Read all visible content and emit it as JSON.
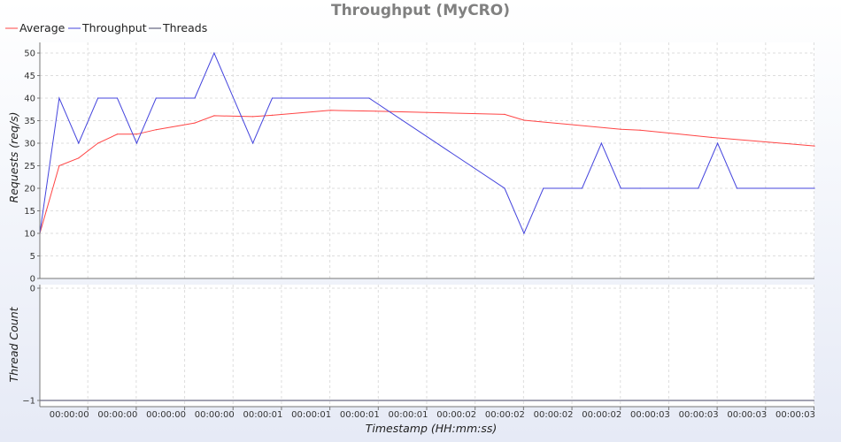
{
  "chart_data": [
    {
      "type": "line",
      "title": "Throughput (MyCRO)",
      "ylabel": "Requests (req/s)",
      "xlabel": "",
      "ylim": [
        0,
        50
      ],
      "yticks": [
        0,
        5,
        10,
        15,
        20,
        25,
        30,
        35,
        40,
        45,
        50
      ],
      "grid": true,
      "legend": "top-left",
      "legend_entries": [
        "Average",
        "Throughput",
        "Threads"
      ],
      "colors": {
        "Average": "#ff4444",
        "Throughput": "#4444dd",
        "Threads": "#444466"
      },
      "x": [
        0,
        0.05,
        0.1,
        0.15,
        0.2,
        0.25,
        0.3,
        0.35,
        0.4,
        0.45,
        0.5,
        0.55,
        0.6,
        0.65,
        0.7,
        0.75,
        0.8,
        0.85,
        0.9,
        0.95,
        1.0,
        1.05,
        1.1,
        1.15,
        1.2,
        1.25,
        1.3,
        1.35,
        1.4,
        1.45,
        1.5,
        1.55,
        1.6,
        1.65,
        1.7,
        1.75,
        1.8,
        1.85,
        1.9,
        1.95,
        2.0,
        2.05,
        2.1,
        2.15,
        2.2,
        2.25,
        2.3,
        2.35,
        2.4,
        2.45,
        2.5,
        2.55,
        2.6,
        2.65,
        2.7,
        2.75,
        2.8,
        2.85,
        2.9,
        2.95,
        3.0
      ],
      "series": [
        {
          "name": "Average",
          "x": [
            0,
            0.075,
            0.15,
            0.225,
            0.3,
            0.375,
            0.45,
            0.6,
            0.675,
            0.825,
            0.9,
            1.125,
            1.3,
            1.8,
            1.875,
            2.25,
            2.325,
            2.6,
            3.0
          ],
          "values": [
            10,
            25,
            26.7,
            30,
            32,
            32,
            33,
            34.5,
            36.1,
            35.9,
            36.2,
            37.3,
            37.1,
            36.4,
            35.1,
            33.1,
            32.9,
            31.3,
            29.4
          ]
        },
        {
          "name": "Throughput",
          "x": [
            0,
            0.075,
            0.15,
            0.225,
            0.3,
            0.375,
            0.45,
            0.6,
            0.675,
            0.825,
            0.9,
            1.275,
            1.8,
            1.875,
            1.95,
            2.1,
            2.175,
            2.25,
            2.325,
            2.55,
            2.625,
            2.7,
            3.0
          ],
          "values": [
            10,
            40,
            30,
            40,
            40,
            30,
            40,
            40,
            50,
            30,
            40,
            40,
            20,
            10,
            20,
            20,
            30,
            20,
            20,
            20,
            30,
            20,
            20
          ]
        }
      ]
    },
    {
      "type": "line",
      "title": "",
      "ylabel": "Thread Count",
      "xlabel": "Timestamp (HH:mm:ss)",
      "ylim": [
        -1,
        0
      ],
      "yticks": [
        0,
        -1
      ],
      "grid": true,
      "x_tick_labels": [
        "00:00:00",
        "00:00:00",
        "00:00:00",
        "00:00:00",
        "00:00:01",
        "00:00:01",
        "00:00:01",
        "00:00:01",
        "00:00:02",
        "00:00:02",
        "00:00:02",
        "00:00:02",
        "00:00:03",
        "00:00:03",
        "00:00:03",
        "00:00:03"
      ],
      "series": [
        {
          "name": "Threads",
          "x": [
            0,
            3.0
          ],
          "values": [
            -1,
            -1
          ]
        }
      ]
    }
  ]
}
